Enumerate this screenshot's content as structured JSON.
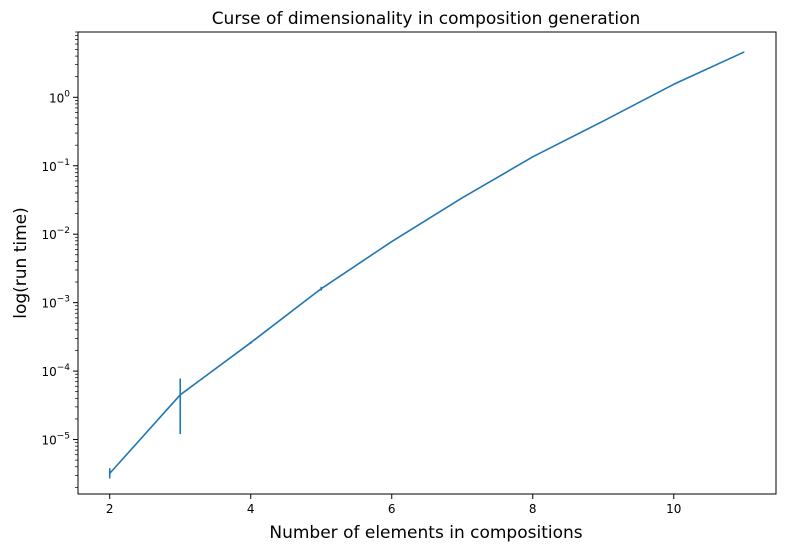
{
  "chart_data": {
    "type": "line",
    "title": "Curse of dimensionality in composition generation",
    "xlabel": "Number of elements in compositions",
    "ylabel": "log(run time)",
    "x_scale": "linear",
    "y_scale": "log",
    "xlim": [
      1.55,
      11.45
    ],
    "ylim": [
      1.6e-06,
      9.0
    ],
    "x_ticks": [
      2,
      4,
      6,
      8,
      10
    ],
    "x_tick_labels": [
      "2",
      "4",
      "6",
      "8",
      "10"
    ],
    "y_ticks": [
      1e-05,
      0.0001,
      0.001,
      0.01,
      0.1,
      1.0
    ],
    "y_tick_labels": [
      {
        "base": "10",
        "exp": "−5"
      },
      {
        "base": "10",
        "exp": "−4"
      },
      {
        "base": "10",
        "exp": "−3"
      },
      {
        "base": "10",
        "exp": "−2"
      },
      {
        "base": "10",
        "exp": "−1"
      },
      {
        "base": "10",
        "exp": "0"
      }
    ],
    "grid": false,
    "legend": false,
    "series": [
      {
        "color": "#1f77b4",
        "x": [
          2,
          3,
          4,
          5,
          6,
          7,
          8,
          9,
          10,
          11
        ],
        "y": [
          3.2e-06,
          4.5e-05,
          0.00026,
          0.0016,
          0.0078,
          0.034,
          0.135,
          0.45,
          1.55,
          4.6
        ],
        "y_err_low": [
          2.7e-06,
          1.2e-05,
          0.00025,
          0.0015,
          0.0077,
          0.0339,
          0.134,
          0.449,
          1.54,
          4.59
        ],
        "y_err_high": [
          3.8e-06,
          7.8e-05,
          0.00027,
          0.0017,
          0.0079,
          0.0341,
          0.136,
          0.451,
          1.56,
          4.61
        ]
      }
    ]
  }
}
